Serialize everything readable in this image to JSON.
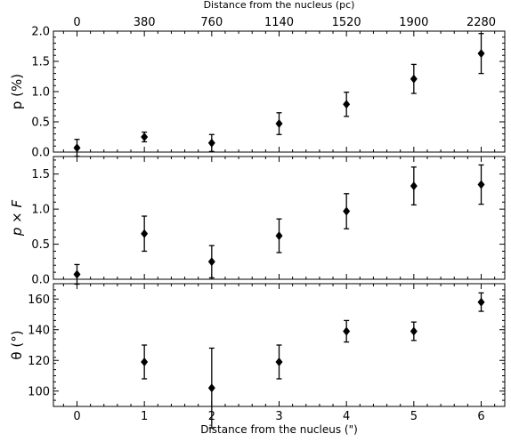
{
  "chart_data": {
    "type": "scatter",
    "xlabel": "Distance from the nucleus (\")",
    "x2label": "Distance from the nucleus (pc)",
    "x": [
      0,
      1,
      2,
      3,
      4,
      5,
      6
    ],
    "xticks": [
      "0",
      "1",
      "2",
      "3",
      "4",
      "5",
      "6"
    ],
    "x2ticks": [
      "0",
      "380",
      "760",
      "1140",
      "1520",
      "1900",
      "2280"
    ],
    "xlim": [
      -0.35,
      6.35
    ],
    "marker": "diamond",
    "color": "#000000",
    "panels": [
      {
        "ylabel": "p (%)",
        "ylabel_italic": false,
        "ylim": [
          0,
          2.0
        ],
        "yticks": [
          "0.0",
          "0.5",
          "1.0",
          "1.5",
          "2.0"
        ],
        "ytick_values": [
          0,
          0.5,
          1.0,
          1.5,
          2.0
        ],
        "y": [
          0.07,
          0.25,
          0.15,
          0.47,
          0.79,
          1.21,
          1.63
        ],
        "yerr": [
          0.14,
          0.08,
          0.14,
          0.18,
          0.2,
          0.24,
          0.33
        ]
      },
      {
        "ylabel": "p × F",
        "ylabel_italic": true,
        "ylim": [
          0,
          1.75
        ],
        "yticks": [
          "0.0",
          "0.5",
          "1.0",
          "1.5"
        ],
        "ytick_values": [
          0,
          0.5,
          1.0,
          1.5
        ],
        "y": [
          0.07,
          0.65,
          0.25,
          0.62,
          0.97,
          1.33,
          1.35
        ],
        "yerr": [
          0.14,
          0.25,
          0.23,
          0.24,
          0.25,
          0.27,
          0.28
        ]
      },
      {
        "ylabel": "θ (°)",
        "ylabel_italic": false,
        "ylim": [
          90,
          170
        ],
        "yticks": [
          "100",
          "120",
          "140",
          "160"
        ],
        "ytick_values": [
          100,
          120,
          140,
          160
        ],
        "y": [
          null,
          119,
          102,
          119,
          139,
          139,
          158
        ],
        "yerr": [
          null,
          11,
          26,
          11,
          7,
          6,
          6
        ]
      }
    ]
  }
}
